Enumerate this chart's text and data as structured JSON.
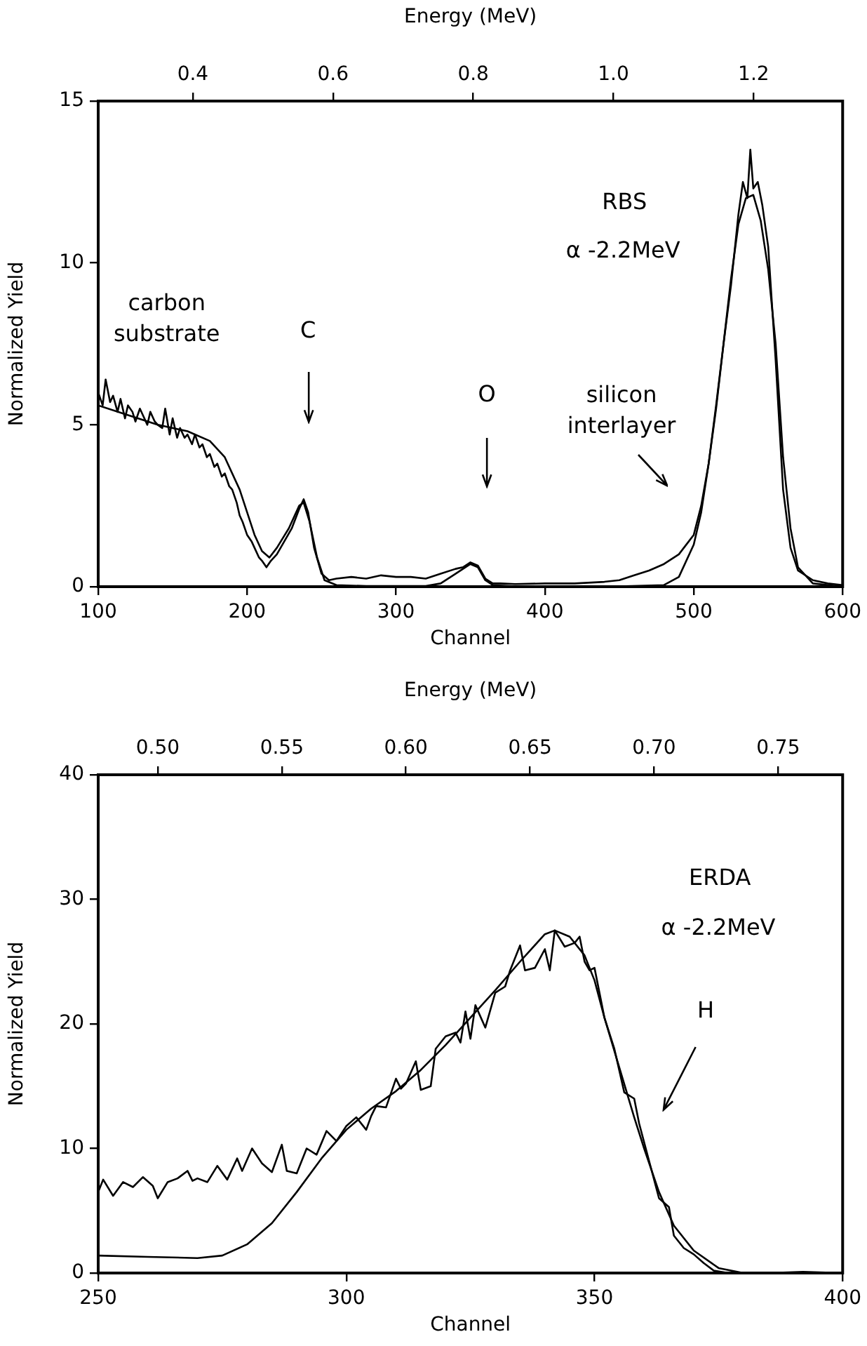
{
  "chart_data": [
    {
      "type": "line",
      "xlabel": "Channel",
      "ylabel": "Normalized Yield",
      "x2label": "Energy (MeV)",
      "xlim": [
        100,
        600
      ],
      "xticks": [
        100,
        200,
        300,
        400,
        500,
        600
      ],
      "ylim": [
        0,
        15
      ],
      "yticks": [
        0,
        5,
        10,
        15
      ],
      "x2lim": [
        0.265,
        1.327
      ],
      "x2ticks": [
        0.4,
        0.6,
        0.8,
        {
          "value": 1,
          "label": "1.0"
        },
        1.2
      ],
      "grid": false,
      "legend": false,
      "marker": "none",
      "line_style": "solid",
      "series": [
        {
          "color": "#000000",
          "x": [
            100,
            103,
            105,
            108,
            110,
            113,
            115,
            118,
            120,
            123,
            125,
            128,
            130,
            133,
            135,
            138,
            140,
            143,
            145,
            148,
            150,
            153,
            155,
            158,
            160,
            163,
            165,
            168,
            170,
            173,
            175,
            178,
            180,
            183,
            185,
            188,
            190,
            193,
            195,
            197,
            200,
            203,
            205,
            208,
            210,
            213,
            216,
            220,
            225,
            230,
            235,
            238,
            241,
            245,
            250,
            255,
            260,
            270,
            280,
            290,
            300,
            310,
            320,
            330,
            340,
            345,
            350,
            355,
            360,
            365,
            370,
            380,
            400,
            420,
            440,
            450,
            460,
            470,
            480,
            490,
            500,
            505,
            510,
            515,
            520,
            525,
            530,
            533,
            536,
            538,
            540,
            543,
            546,
            550,
            555,
            560,
            565,
            570,
            580,
            590,
            600
          ],
          "values": [
            6.0,
            5.6,
            6.4,
            5.7,
            5.9,
            5.4,
            5.8,
            5.2,
            5.6,
            5.4,
            5.1,
            5.5,
            5.3,
            5.0,
            5.4,
            5.1,
            5.0,
            4.9,
            5.5,
            4.7,
            5.2,
            4.6,
            4.9,
            4.6,
            4.7,
            4.4,
            4.7,
            4.3,
            4.4,
            4.0,
            4.1,
            3.7,
            3.8,
            3.4,
            3.5,
            3.1,
            3.0,
            2.6,
            2.2,
            2.0,
            1.6,
            1.4,
            1.2,
            0.9,
            0.8,
            0.6,
            0.8,
            1.0,
            1.4,
            1.8,
            2.4,
            2.7,
            2.3,
            1.2,
            0.4,
            0.2,
            0.25,
            0.3,
            0.25,
            0.35,
            0.3,
            0.3,
            0.25,
            0.4,
            0.55,
            0.6,
            0.75,
            0.65,
            0.25,
            0.1,
            0.1,
            0.08,
            0.1,
            0.1,
            0.15,
            0.2,
            0.35,
            0.5,
            0.7,
            1.0,
            1.6,
            2.5,
            3.8,
            5.6,
            7.5,
            9.3,
            11.5,
            12.5,
            12.0,
            13.5,
            12.3,
            12.5,
            11.8,
            10.5,
            7.0,
            3.0,
            1.2,
            0.5,
            0.2,
            0.1,
            0.05
          ]
        },
        {
          "color": "#000000",
          "x": [
            100,
            120,
            140,
            160,
            175,
            185,
            195,
            200,
            205,
            210,
            215,
            220,
            228,
            235,
            238,
            242,
            247,
            252,
            260,
            280,
            320,
            330,
            340,
            350,
            355,
            360,
            365,
            380,
            450,
            480,
            490,
            500,
            505,
            510,
            515,
            520,
            525,
            530,
            535,
            540,
            545,
            550,
            555,
            560,
            565,
            570,
            580,
            600
          ],
          "values": [
            5.6,
            5.3,
            5.0,
            4.8,
            4.5,
            4.0,
            3.0,
            2.3,
            1.6,
            1.1,
            0.9,
            1.2,
            1.8,
            2.5,
            2.6,
            2.0,
            0.9,
            0.2,
            0.05,
            0.02,
            0.02,
            0.1,
            0.4,
            0.7,
            0.6,
            0.2,
            0.05,
            0.01,
            0.01,
            0.05,
            0.3,
            1.3,
            2.3,
            3.8,
            5.5,
            7.5,
            9.5,
            11.2,
            12.0,
            12.1,
            11.3,
            9.8,
            7.5,
            4.0,
            1.8,
            0.6,
            0.1,
            0.0
          ]
        }
      ],
      "annotations": [
        "carbon substrate",
        "C",
        "O",
        "silicon interlayer",
        "RBS",
        "α -2.2MeV"
      ]
    },
    {
      "type": "line",
      "xlabel": "Channel",
      "ylabel": "Normalized Yield",
      "x2label": "Energy (MeV)",
      "xlim": [
        250,
        400
      ],
      "xticks": [
        250,
        300,
        350,
        400
      ],
      "ylim": [
        0,
        40
      ],
      "yticks": [
        0,
        10,
        20,
        30,
        40
      ],
      "x2lim": [
        0.476,
        0.776
      ],
      "x2ticks": [
        {
          "value": 0.5,
          "label": "0.50"
        },
        0.55,
        {
          "value": 0.6,
          "label": "0.60"
        },
        0.65,
        {
          "value": 0.7,
          "label": "0.70"
        },
        0.75
      ],
      "grid": false,
      "legend": false,
      "marker": "none",
      "line_style": "solid",
      "series": [
        {
          "color": "#000000",
          "x": [
            250,
            251,
            253,
            255,
            257,
            259,
            261,
            262,
            264,
            266,
            268,
            269,
            270,
            272,
            274,
            276,
            278,
            279,
            281,
            283,
            285,
            287,
            288,
            290,
            292,
            294,
            296,
            298,
            300,
            302,
            304,
            305,
            306,
            308,
            310,
            311,
            312,
            314,
            315,
            317,
            318,
            320,
            322,
            323,
            324,
            325,
            326,
            328,
            330,
            332,
            333,
            335,
            336,
            338,
            340,
            341,
            342,
            344,
            346,
            347,
            348,
            349,
            350,
            351,
            352,
            354,
            356,
            358,
            359,
            361,
            363,
            365,
            366,
            368,
            370,
            372,
            374,
            377,
            380,
            385,
            392,
            400
          ],
          "values": [
            6.5,
            7.5,
            6.2,
            7.3,
            6.9,
            7.7,
            7.0,
            6.0,
            7.3,
            7.6,
            8.2,
            7.4,
            7.6,
            7.3,
            8.6,
            7.5,
            9.2,
            8.2,
            10.0,
            8.8,
            8.1,
            10.3,
            8.2,
            8.0,
            10.0,
            9.5,
            11.4,
            10.6,
            11.8,
            12.5,
            11.5,
            12.6,
            13.4,
            13.3,
            15.6,
            14.8,
            15.2,
            17.0,
            14.7,
            15.0,
            18.0,
            19.0,
            19.3,
            18.5,
            21.0,
            18.8,
            21.5,
            19.7,
            22.5,
            23.0,
            24.3,
            26.3,
            24.3,
            24.5,
            26.0,
            24.3,
            27.5,
            26.2,
            26.5,
            27.0,
            25.0,
            24.3,
            24.5,
            22.5,
            20.5,
            18.0,
            14.5,
            14.0,
            12.0,
            9.0,
            6.0,
            5.3,
            3.0,
            2.0,
            1.5,
            0.8,
            0.2,
            0.0,
            0.0,
            0.0,
            0.1,
            0.0
          ]
        },
        {
          "color": "#000000",
          "x": [
            250,
            260,
            270,
            275,
            280,
            285,
            290,
            295,
            300,
            305,
            310,
            315,
            320,
            325,
            330,
            335,
            340,
            342,
            345,
            348,
            350,
            352,
            355,
            358,
            360,
            363,
            366,
            370,
            375,
            380,
            400
          ],
          "values": [
            1.4,
            1.3,
            1.2,
            1.4,
            2.3,
            4.0,
            6.5,
            9.2,
            11.5,
            13.2,
            14.6,
            16.3,
            18.3,
            20.5,
            22.7,
            25.0,
            27.2,
            27.5,
            27.0,
            25.5,
            23.5,
            20.5,
            16.5,
            12.5,
            10.0,
            6.5,
            3.8,
            1.8,
            0.4,
            0.0,
            0.0
          ]
        }
      ],
      "annotations": [
        "H",
        "ERDA",
        "α -2.2MeV"
      ]
    }
  ]
}
